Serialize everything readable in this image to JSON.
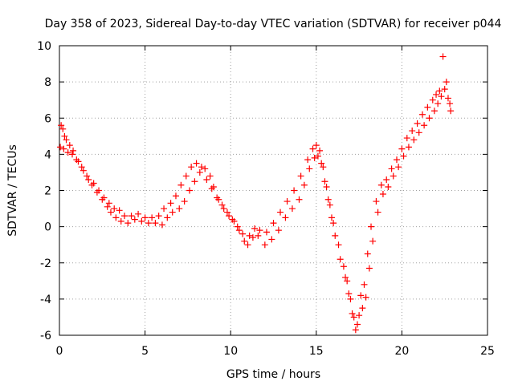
{
  "chart_data": {
    "type": "scatter",
    "title": "Day 358 of 2023, Sidereal Day-to-day VTEC variation (SDTVAR) for receiver p044",
    "xlabel": "GPS time / hours",
    "ylabel": "SDTVAR / TECUs",
    "xlim": [
      0,
      25
    ],
    "ylim": [
      -6,
      10
    ],
    "xticks": [
      "0",
      "5",
      "10",
      "15",
      "20",
      "25"
    ],
    "yticks": [
      "-6",
      "-4",
      "-2",
      "0",
      "2",
      "4",
      "6",
      "8",
      "10"
    ],
    "grid": true,
    "legend": "none",
    "marker": "plus",
    "color": "#ff0000",
    "series": [
      {
        "x": [
          0.05,
          0.25,
          0.5,
          0.75,
          1.0,
          1.3,
          1.6,
          1.9,
          2.2,
          2.5,
          2.8,
          3.0,
          3.3,
          3.6,
          4.0,
          4.4,
          4.8,
          5.2,
          5.6,
          6.0,
          6.3,
          6.6,
          7.0,
          7.3,
          7.6,
          7.9,
          8.2,
          8.5,
          8.8,
          9.0,
          9.3,
          9.6,
          9.9,
          10.2,
          10.5,
          10.8,
          11.0,
          11.3,
          11.6,
          12.0,
          12.4,
          12.8,
          13.2,
          13.6,
          14.0,
          14.3,
          14.6,
          14.9,
          15.1,
          15.3,
          15.5,
          15.7,
          15.9,
          16.1,
          16.4,
          16.7,
          16.9,
          17.1,
          17.3,
          17.5,
          17.7,
          17.9,
          18.1,
          18.3,
          18.6,
          18.9,
          19.2,
          19.5,
          19.8,
          20.1,
          20.4,
          20.7,
          21.0,
          21.3,
          21.6,
          21.9,
          22.1,
          22.3,
          22.5,
          22.7,
          22.85
        ],
        "y": [
          4.4,
          4.3,
          4.1,
          4.0,
          3.7,
          3.3,
          2.8,
          2.3,
          1.9,
          1.5,
          1.1,
          0.8,
          0.5,
          0.3,
          0.2,
          0.4,
          0.3,
          0.2,
          0.2,
          0.1,
          0.5,
          0.8,
          1.0,
          1.4,
          2.0,
          2.5,
          3.0,
          3.2,
          2.8,
          2.2,
          1.5,
          1.0,
          0.6,
          0.3,
          -0.2,
          -0.8,
          -1.0,
          -0.6,
          -0.5,
          -1.0,
          -0.7,
          -0.2,
          0.5,
          1.0,
          1.5,
          2.3,
          3.2,
          3.8,
          3.9,
          3.5,
          2.5,
          1.5,
          0.5,
          -0.5,
          -1.8,
          -2.8,
          -3.7,
          -4.8,
          -5.7,
          -4.9,
          -4.5,
          -3.9,
          -2.3,
          -0.8,
          0.8,
          1.8,
          2.2,
          2.8,
          3.3,
          3.9,
          4.4,
          4.8,
          5.2,
          5.6,
          6.0,
          6.4,
          6.8,
          7.2,
          7.6,
          7.1,
          6.4
        ]
      },
      {
        "x": [
          0.1,
          0.2,
          0.3,
          0.4,
          0.6,
          0.8,
          1.1,
          1.4,
          1.7,
          2.0,
          2.3,
          2.6,
          2.9,
          3.2,
          3.5,
          3.8,
          4.2,
          4.6,
          5.0,
          5.4,
          5.8,
          6.1,
          6.5,
          6.8,
          7.1,
          7.4,
          7.7,
          8.0,
          8.3,
          8.6,
          8.9,
          9.2,
          9.5,
          9.8,
          10.1,
          10.4,
          10.7,
          11.1,
          11.4,
          11.7,
          12.1,
          12.5,
          12.9,
          13.3,
          13.7,
          14.1,
          14.5,
          14.8,
          15.0,
          15.2,
          15.4,
          15.6,
          15.8,
          16.0,
          16.3,
          16.6,
          16.8,
          17.0,
          17.2,
          17.4,
          17.6,
          17.8,
          18.0,
          18.2,
          18.5,
          18.8,
          19.1,
          19.4,
          19.7,
          20.0,
          20.3,
          20.6,
          20.9,
          21.2,
          21.5,
          21.8,
          22.0,
          22.2,
          22.4,
          22.6,
          22.8
        ],
        "y": [
          5.6,
          5.4,
          5.0,
          4.8,
          4.5,
          4.2,
          3.6,
          3.1,
          2.6,
          2.4,
          2.0,
          1.6,
          1.3,
          1.0,
          0.9,
          0.6,
          0.6,
          0.7,
          0.5,
          0.5,
          0.6,
          1.0,
          1.3,
          1.7,
          2.3,
          2.8,
          3.3,
          3.5,
          3.3,
          2.6,
          2.1,
          1.6,
          1.2,
          0.8,
          0.4,
          0.0,
          -0.4,
          -0.5,
          -0.1,
          -0.2,
          -0.3,
          0.2,
          0.8,
          1.4,
          2.0,
          2.8,
          3.7,
          4.3,
          4.5,
          4.2,
          3.3,
          2.2,
          1.2,
          0.2,
          -1.0,
          -2.2,
          -3.0,
          -4.0,
          -5.0,
          -5.4,
          -3.8,
          -3.2,
          -1.5,
          0.0,
          1.4,
          2.3,
          2.6,
          3.2,
          3.7,
          4.3,
          4.9,
          5.3,
          5.7,
          6.2,
          6.6,
          7.0,
          7.3,
          7.5,
          9.4,
          8.0,
          6.8
        ]
      }
    ]
  }
}
